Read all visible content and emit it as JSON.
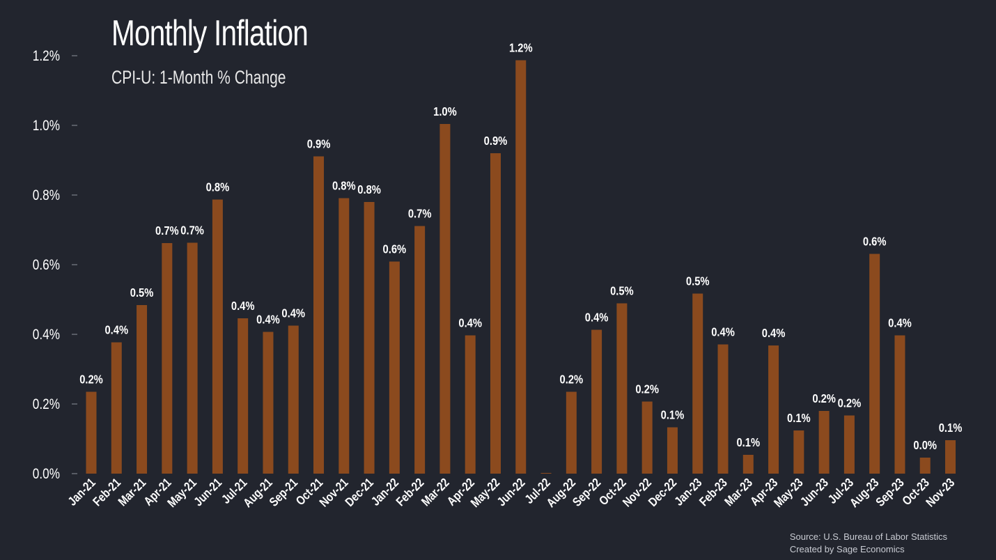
{
  "chart_data": {
    "type": "bar",
    "title": "Monthly Inflation",
    "subtitle": "CPI-U: 1-Month % Change",
    "source_line1": "Source: U.S. Bureau of Labor Statistics",
    "source_line2": "Created by Sage Economics",
    "ylim": [
      0,
      1.2
    ],
    "yticks": [
      "0.0%",
      "0.2%",
      "0.4%",
      "0.6%",
      "0.8%",
      "1.0%",
      "1.2%"
    ],
    "ytick_values": [
      0,
      0.2,
      0.4,
      0.6,
      0.8,
      1.0,
      1.2
    ],
    "grid": false,
    "bar_color": "#8b4a1e",
    "categories": [
      "Jan-21",
      "Feb-21",
      "Mar-21",
      "Apr-21",
      "May-21",
      "Jun-21",
      "Jul-21",
      "Aug-21",
      "Sep-21",
      "Oct-21",
      "Nov-21",
      "Dec-21",
      "Jan-22",
      "Feb-22",
      "Mar-22",
      "Apr-22",
      "May-22",
      "Jun-22",
      "Jul-22",
      "Aug-22",
      "Sep-22",
      "Oct-22",
      "Nov-22",
      "Dec-22",
      "Jan-23",
      "Feb-23",
      "Mar-23",
      "Apr-23",
      "May-23",
      "Jun-23",
      "Jul-23",
      "Aug-23",
      "Sep-23",
      "Oct-23",
      "Nov-23"
    ],
    "values": [
      0.235,
      0.377,
      0.484,
      0.662,
      0.663,
      0.787,
      0.446,
      0.407,
      0.425,
      0.911,
      0.791,
      0.78,
      0.609,
      0.711,
      1.004,
      0.397,
      0.92,
      1.187,
      0.002,
      0.235,
      0.413,
      0.489,
      0.207,
      0.133,
      0.517,
      0.371,
      0.054,
      0.368,
      0.124,
      0.18,
      0.167,
      0.631,
      0.397,
      0.046,
      0.096
    ],
    "labels": [
      "0.2%",
      "0.4%",
      "0.5%",
      "0.7%",
      "0.7%",
      "0.8%",
      "0.4%",
      "0.4%",
      "0.4%",
      "0.9%",
      "0.8%",
      "0.8%",
      "0.6%",
      "0.7%",
      "1.0%",
      "0.4%",
      "0.9%",
      "1.2%",
      "",
      "0.2%",
      "0.4%",
      "0.5%",
      "0.2%",
      "0.1%",
      "0.5%",
      "0.4%",
      "0.1%",
      "0.4%",
      "0.1%",
      "0.2%",
      "0.2%",
      "0.6%",
      "0.4%",
      "0.0%",
      "0.1%"
    ]
  }
}
